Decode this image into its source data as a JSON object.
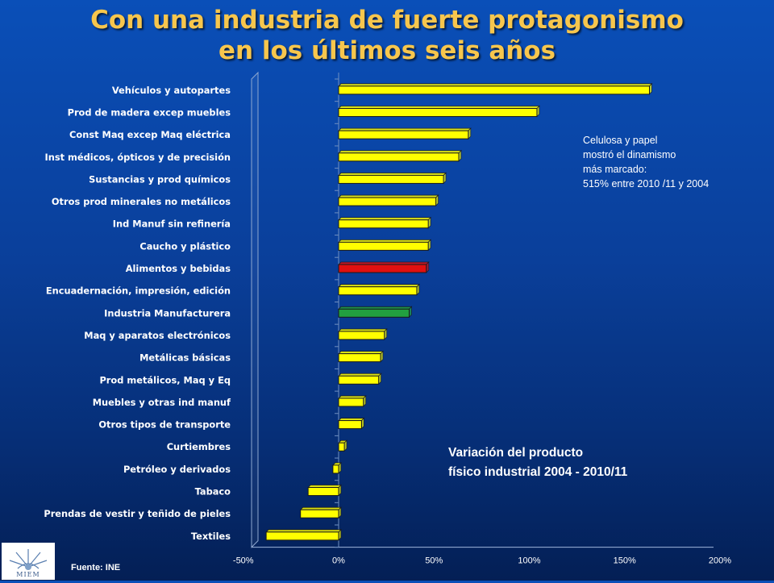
{
  "title": {
    "line1": "Con una industria de fuerte protagonismo",
    "line2": "en los últimos seis años"
  },
  "annotation_top": [
    "Celulosa y papel",
    "mostró el dinamismo",
    "más marcado:",
    "515% entre 2010 /11 y 2004"
  ],
  "annotation_bottom": [
    "Variación del producto",
    "físico industrial 2004 - 2010/11"
  ],
  "source": "Fuente: INE",
  "logo": {
    "text": "MIEM",
    "icon": "miem-logo-icon"
  },
  "colors": {
    "default_bar": "#ffff00",
    "highlight_red": "#e01010",
    "highlight_green": "#22a040"
  },
  "chart_data": {
    "type": "bar",
    "orientation": "horizontal",
    "value_unit": "%",
    "categories": [
      "Vehículos y autopartes",
      "Prod de madera excep muebles",
      "Const Maq excep Maq eléctrica",
      "Inst médicos, ópticos y de precisión",
      "Sustancias y prod químicos",
      "Otros prod minerales no metálicos",
      "Ind Manuf sin refinería",
      "Caucho y plástico",
      "Alimentos y bebidas",
      "Encuadernación, impresión, edición",
      "Industria Manufacturera",
      "Maq y aparatos electrónicos",
      "Metálicas básicas",
      "Prod metálicos, Maq y Eq",
      "Muebles y otras ind manuf",
      "Otros tipos de transporte",
      "Curtiembres",
      "Petróleo y derivados",
      "Tabaco",
      "Prendas de vestir y teñido de pieles",
      "Textiles"
    ],
    "values": [
      163,
      104,
      68,
      63,
      55,
      51,
      47,
      47,
      46,
      41,
      37,
      24,
      22,
      21,
      13,
      12,
      3,
      -3,
      -16,
      -20,
      -38
    ],
    "bar_colors": [
      "default_bar",
      "default_bar",
      "default_bar",
      "default_bar",
      "default_bar",
      "default_bar",
      "default_bar",
      "default_bar",
      "highlight_red",
      "default_bar",
      "highlight_green",
      "default_bar",
      "default_bar",
      "default_bar",
      "default_bar",
      "default_bar",
      "default_bar",
      "default_bar",
      "default_bar",
      "default_bar",
      "default_bar"
    ],
    "xlim": [
      -50,
      200
    ],
    "xticks": [
      -50,
      0,
      50,
      100,
      150,
      200
    ],
    "xtick_labels": [
      "-50%",
      "0%",
      "50%",
      "100%",
      "150%",
      "200%"
    ],
    "title": "",
    "xlabel": "",
    "ylabel": "",
    "grid": false,
    "legend": "none"
  }
}
